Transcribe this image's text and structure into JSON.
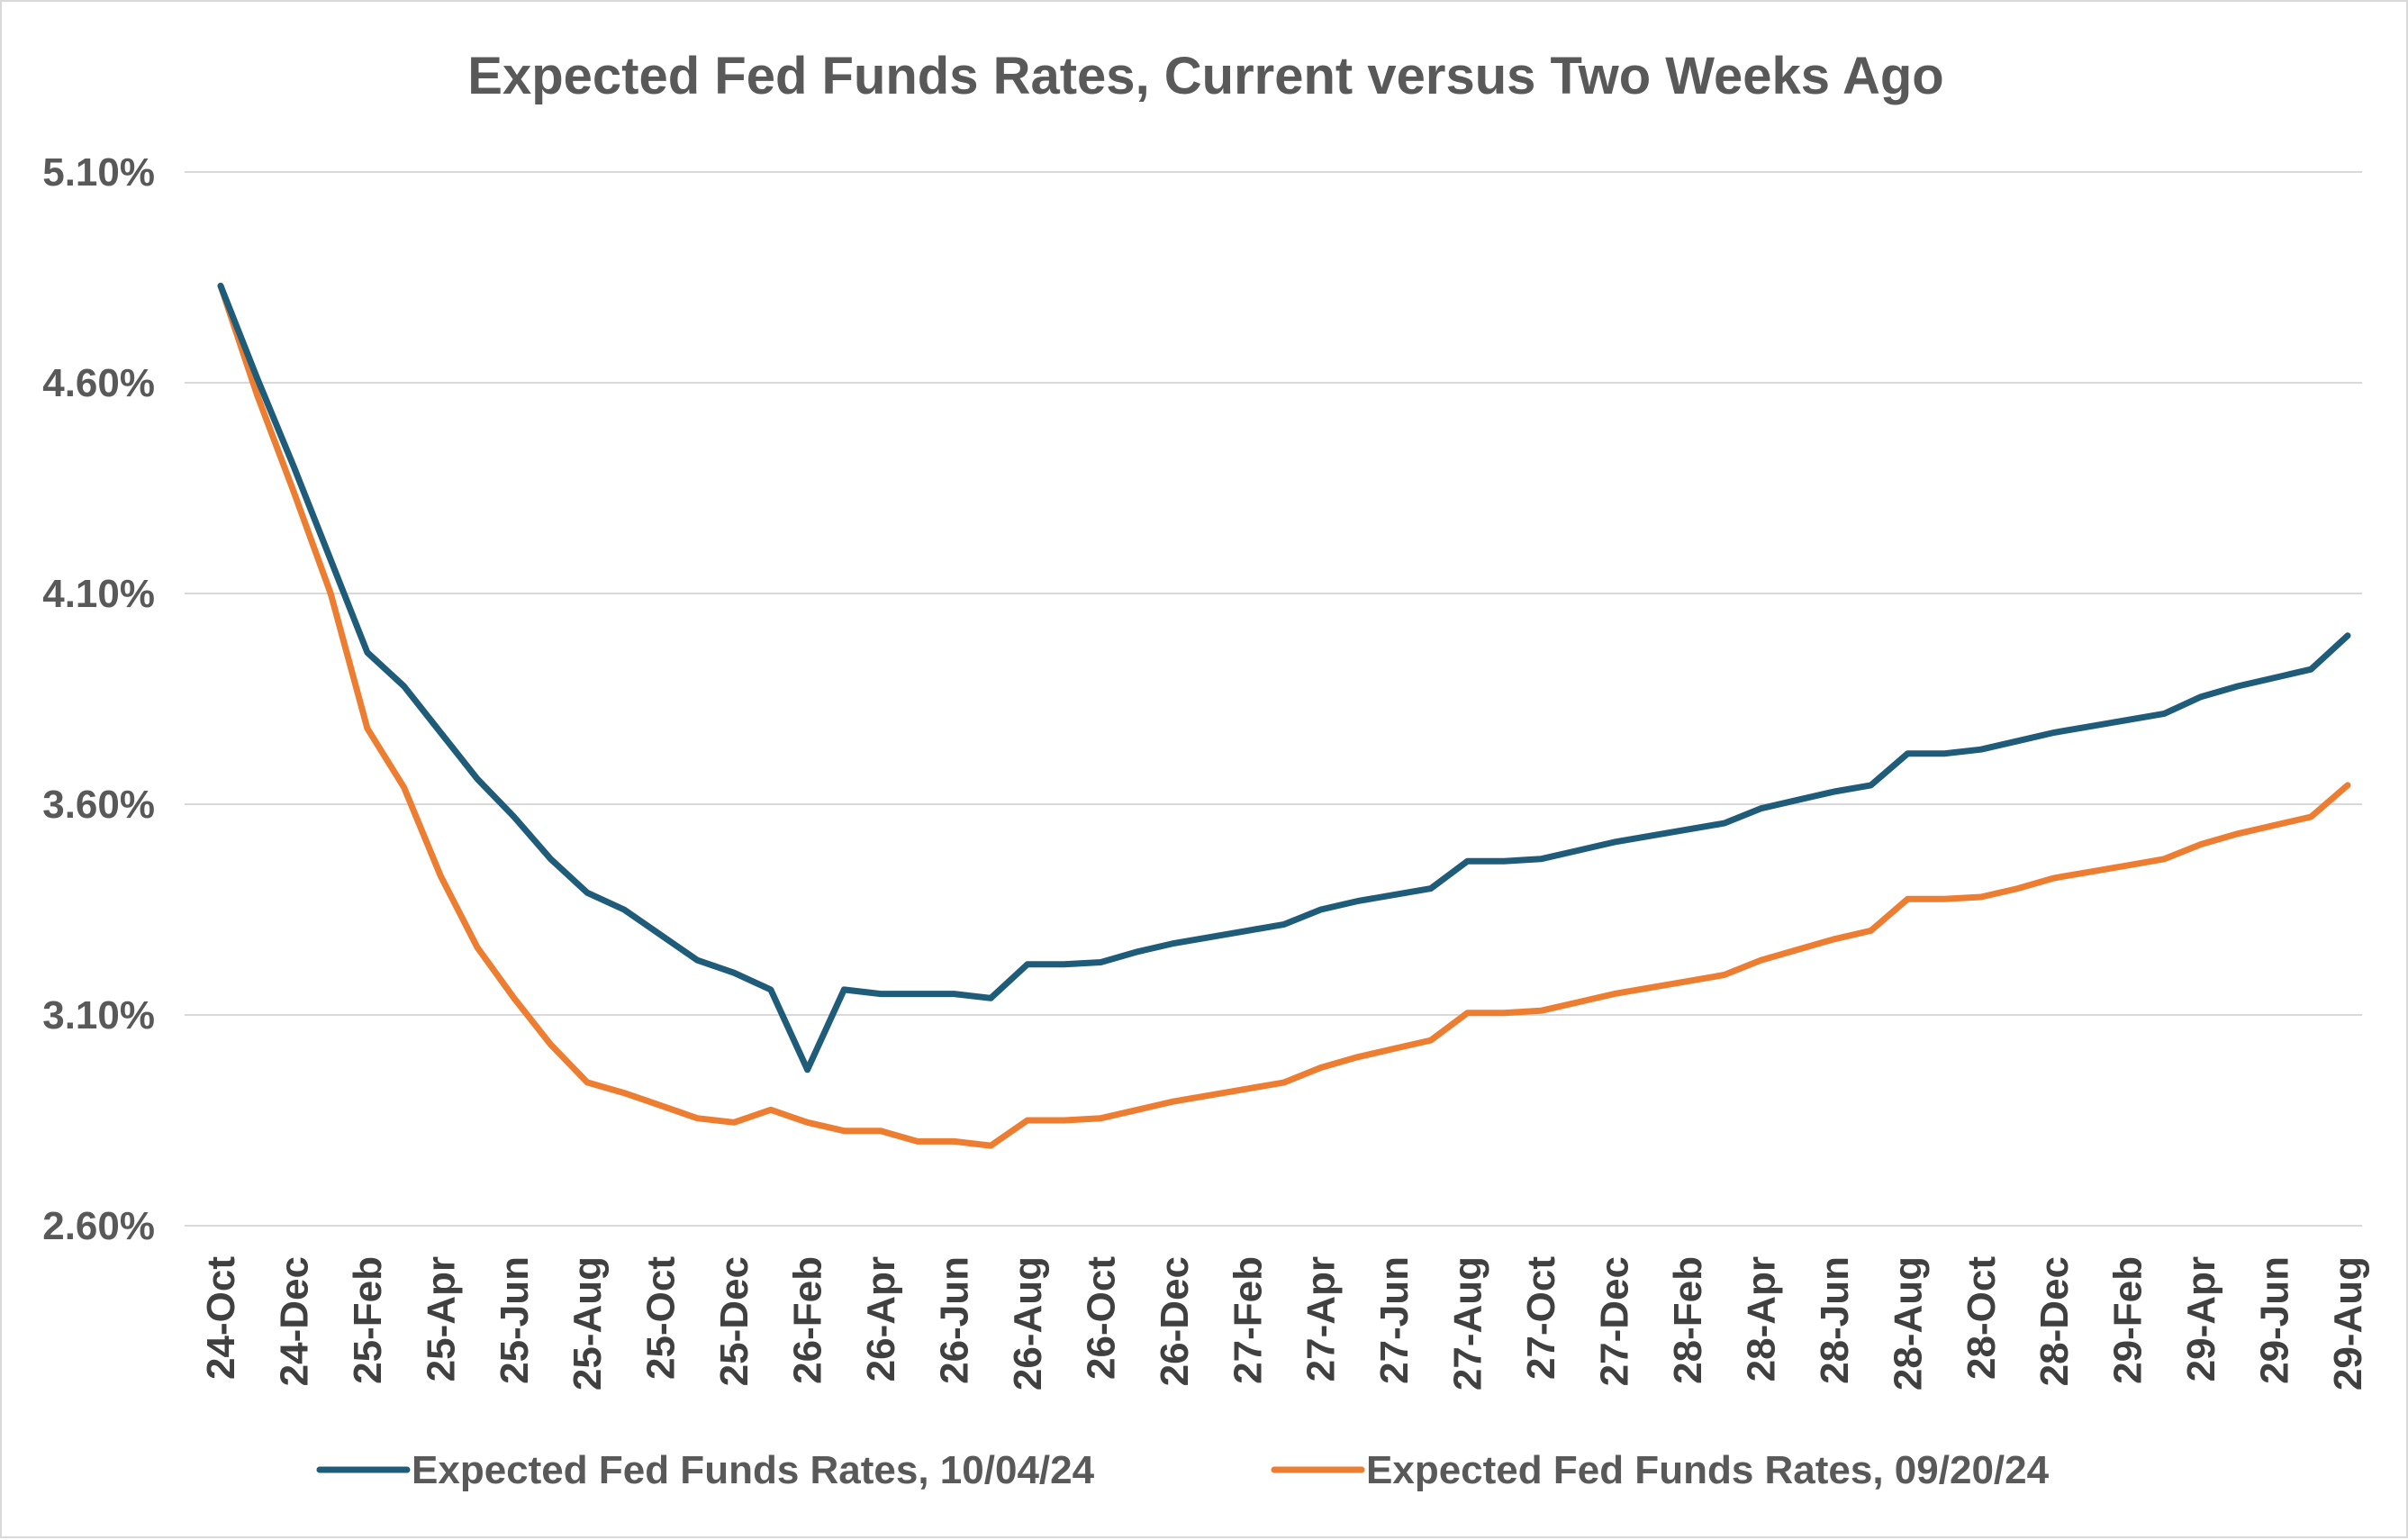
{
  "chart_data": {
    "type": "line",
    "title": "Expected Fed Funds Rates, Current versus Two Weeks Ago",
    "xlabel": "",
    "ylabel": "",
    "ylim": [
      2.6,
      5.1
    ],
    "yticks": [
      "5.10%",
      "4.60%",
      "4.10%",
      "3.60%",
      "3.10%",
      "2.60%"
    ],
    "ytick_values": [
      5.1,
      4.6,
      4.1,
      3.6,
      3.1,
      2.6
    ],
    "grid": true,
    "legend_position": "bottom",
    "x": [
      "24-Oct",
      "24-Nov",
      "24-Dec",
      "25-Jan",
      "25-Feb",
      "25-Mar",
      "25-Apr",
      "25-May",
      "25-Jun",
      "25-Jul",
      "25-Aug",
      "25-Sep",
      "25-Oct",
      "25-Nov",
      "25-Dec",
      "26-Jan",
      "26-Feb",
      "26-Mar",
      "26-Apr",
      "26-May",
      "26-Jun",
      "26-Jul",
      "26-Aug",
      "26-Sep",
      "26-Oct",
      "26-Nov",
      "26-Dec",
      "27-Jan",
      "27-Feb",
      "27-Mar",
      "27-Apr",
      "27-May",
      "27-Jun",
      "27-Jul",
      "27-Aug",
      "27-Sep",
      "27-Oct",
      "27-Nov",
      "27-Dec",
      "28-Jan",
      "28-Feb",
      "28-Mar",
      "28-Apr",
      "28-May",
      "28-Jun",
      "28-Jul",
      "28-Aug",
      "28-Sep",
      "28-Oct",
      "28-Nov",
      "28-Dec",
      "29-Jan",
      "29-Feb",
      "29-Mar",
      "29-Apr",
      "29-May",
      "29-Jun",
      "29-Jul",
      "29-Aug"
    ],
    "x_tick_labels": [
      "24-Oct",
      "24-Dec",
      "25-Feb",
      "25-Apr",
      "25-Jun",
      "25-Aug",
      "25-Oct",
      "25-Dec",
      "26-Feb",
      "26-Apr",
      "26-Jun",
      "26-Aug",
      "26-Oct",
      "26-Dec",
      "27-Feb",
      "27-Apr",
      "27-Jun",
      "27-Aug",
      "27-Oct",
      "27-Dec",
      "28-Feb",
      "28-Apr",
      "28-Jun",
      "28-Aug",
      "28-Oct",
      "28-Dec",
      "29-Feb",
      "29-Apr",
      "29-Jun",
      "29-Aug"
    ],
    "series": [
      {
        "name": "Expected Fed Funds Rates, 10/04/24",
        "color": "#1f5c7a",
        "values": [
          4.83,
          4.61,
          4.4,
          4.18,
          3.96,
          3.88,
          3.77,
          3.66,
          3.57,
          3.47,
          3.39,
          3.35,
          3.29,
          3.23,
          3.2,
          3.16,
          2.97,
          3.16,
          3.15,
          3.15,
          3.15,
          3.14,
          3.22,
          3.22,
          3.225,
          3.25,
          3.27,
          3.285,
          3.3,
          3.315,
          3.35,
          3.37,
          3.385,
          3.4,
          3.465,
          3.465,
          3.47,
          3.49,
          3.51,
          3.525,
          3.54,
          3.555,
          3.59,
          3.61,
          3.63,
          3.645,
          3.72,
          3.72,
          3.73,
          3.75,
          3.77,
          3.785,
          3.8,
          3.815,
          3.855,
          3.88,
          3.9,
          3.92,
          4.0
        ]
      },
      {
        "name": "Expected Fed Funds Rates, 09/20/24",
        "color": "#ed7d31",
        "values": [
          4.83,
          4.57,
          4.34,
          4.1,
          3.78,
          3.64,
          3.43,
          3.26,
          3.14,
          3.03,
          2.94,
          2.915,
          2.885,
          2.855,
          2.845,
          2.875,
          2.845,
          2.825,
          2.825,
          2.8,
          2.8,
          2.79,
          2.85,
          2.85,
          2.855,
          2.875,
          2.895,
          2.91,
          2.925,
          2.94,
          2.975,
          3.0,
          3.02,
          3.04,
          3.105,
          3.105,
          3.11,
          3.13,
          3.15,
          3.165,
          3.18,
          3.195,
          3.23,
          3.255,
          3.28,
          3.3,
          3.375,
          3.375,
          3.38,
          3.4,
          3.425,
          3.44,
          3.455,
          3.47,
          3.505,
          3.53,
          3.55,
          3.57,
          3.645
        ]
      }
    ]
  }
}
